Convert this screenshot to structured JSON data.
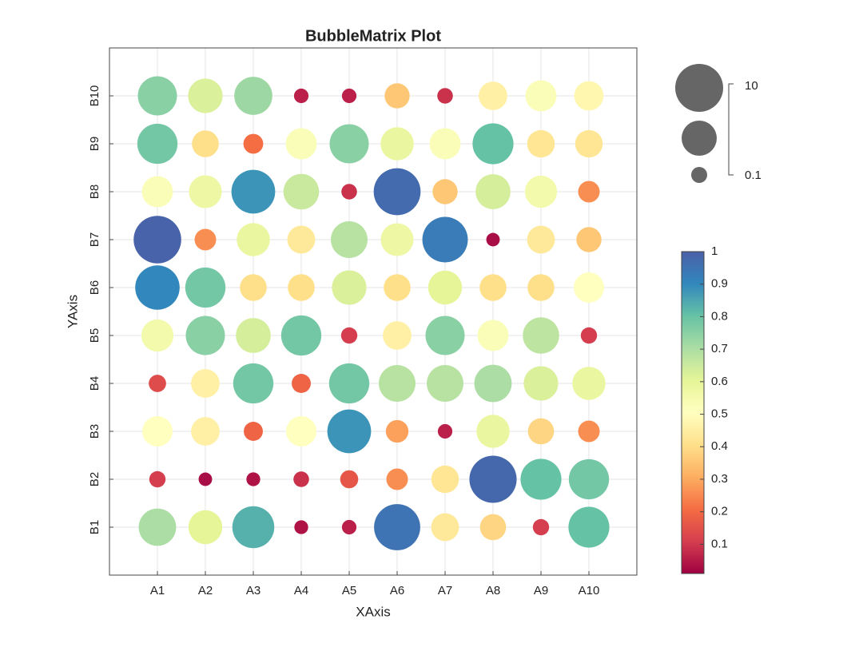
{
  "chart_data": {
    "type": "bubble",
    "title": "BubbleMatrix Plot",
    "xlabel": "XAxis",
    "ylabel": "YAxis",
    "x_categories": [
      "A1",
      "A2",
      "A3",
      "A4",
      "A5",
      "A6",
      "A7",
      "A8",
      "A9",
      "A10"
    ],
    "y_categories": [
      "B1",
      "B2",
      "B3",
      "B4",
      "B5",
      "B6",
      "B7",
      "B8",
      "B9",
      "B10"
    ],
    "values": [
      [
        0.7,
        0.6,
        0.83,
        0.03,
        0.05,
        0.95,
        0.43,
        0.38,
        0.1,
        0.8
      ],
      [
        0.1,
        0.02,
        0.03,
        0.08,
        0.15,
        0.25,
        0.42,
        0.98,
        0.8,
        0.78
      ],
      [
        0.5,
        0.45,
        0.18,
        0.5,
        0.88,
        0.28,
        0.05,
        0.58,
        0.38,
        0.25
      ],
      [
        0.13,
        0.45,
        0.78,
        0.18,
        0.78,
        0.68,
        0.68,
        0.7,
        0.62,
        0.58
      ],
      [
        0.55,
        0.75,
        0.63,
        0.78,
        0.1,
        0.45,
        0.75,
        0.52,
        0.67,
        0.1
      ],
      [
        0.9,
        0.78,
        0.4,
        0.4,
        0.62,
        0.4,
        0.6,
        0.4,
        0.4,
        0.5
      ],
      [
        0.99,
        0.25,
        0.58,
        0.43,
        0.68,
        0.57,
        0.93,
        0.02,
        0.43,
        0.35
      ],
      [
        0.52,
        0.57,
        0.88,
        0.65,
        0.08,
        0.97,
        0.35,
        0.63,
        0.55,
        0.25
      ],
      [
        0.78,
        0.4,
        0.2,
        0.52,
        0.75,
        0.58,
        0.52,
        0.8,
        0.42,
        0.42
      ],
      [
        0.75,
        0.62,
        0.72,
        0.05,
        0.05,
        0.35,
        0.08,
        0.45,
        0.52,
        0.47
      ]
    ],
    "colormap": [
      "#9e0142",
      "#d53e4f",
      "#f46d43",
      "#fdae61",
      "#fee08b",
      "#ffffbf",
      "#e6f598",
      "#abdda4",
      "#66c2a5",
      "#3288bd",
      "#4a5fa8"
    ],
    "clim": [
      0.01,
      1
    ],
    "cticks": [
      0.1,
      0.2,
      0.3,
      0.4,
      0.5,
      0.6,
      0.7,
      0.8,
      0.9,
      1
    ],
    "size_legend": [
      10,
      0.1
    ],
    "grid": true
  }
}
